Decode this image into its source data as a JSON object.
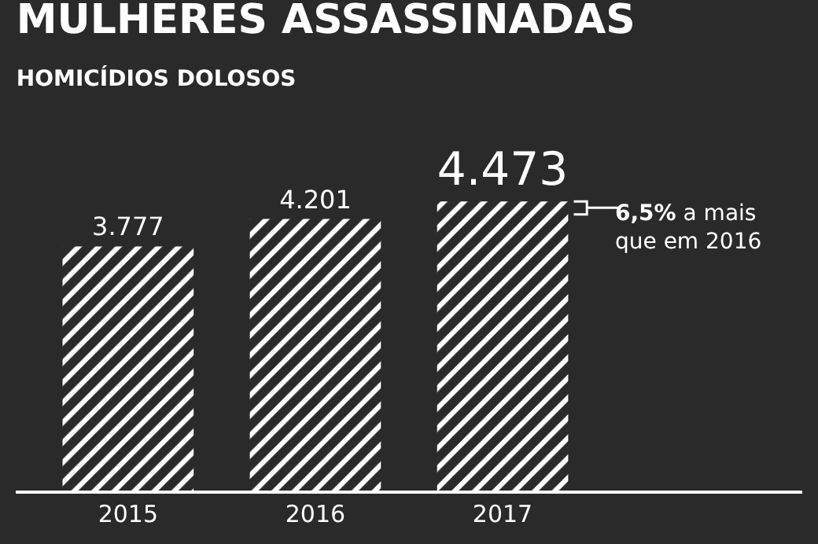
{
  "chart_data": {
    "type": "bar",
    "title": "MULHERES ASSASSINADAS",
    "subtitle": "HOMICÍDIOS DOLOSOS",
    "categories": [
      "2015",
      "2016",
      "2017"
    ],
    "values": [
      3777,
      4201,
      4473
    ],
    "value_labels": [
      "3.777",
      "4.201",
      "4.473"
    ],
    "color": "#ffffff",
    "annotations": [
      "6,5% a mais que em 2016"
    ],
    "grid": false,
    "legend": false
  }
}
